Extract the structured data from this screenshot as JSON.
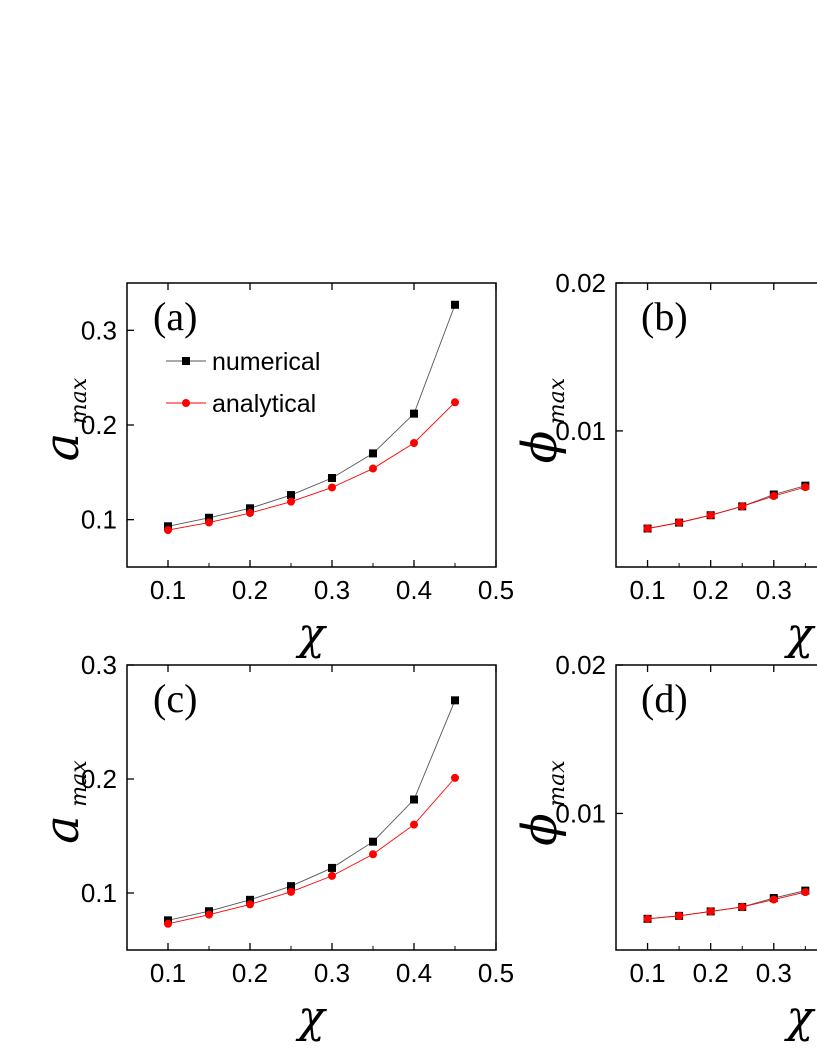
{
  "chart_data": [
    {
      "type": "line",
      "panel_label": "(a)",
      "xlabel": "χ",
      "ylabel": {
        "symbol": "a",
        "subscript": "max"
      },
      "xlim": [
        0.05,
        0.5
      ],
      "ylim": [
        0.05,
        0.35
      ],
      "x_ticks": [
        0.1,
        0.2,
        0.3,
        0.4,
        0.5
      ],
      "x_tick_labels": [
        "0.1",
        "0.2",
        "0.3",
        "0.4",
        "0.5"
      ],
      "y_ticks": [
        0.1,
        0.2,
        0.3
      ],
      "y_tick_labels": [
        "0.1",
        "0.2",
        "0.3"
      ],
      "x": [
        0.1,
        0.15,
        0.2,
        0.25,
        0.3,
        0.35,
        0.4,
        0.45
      ],
      "series": [
        {
          "name": "numerical",
          "marker": "square",
          "color": "#000000",
          "values": [
            0.093,
            0.102,
            0.112,
            0.126,
            0.144,
            0.17,
            0.212,
            0.327
          ]
        },
        {
          "name": "analytical",
          "marker": "circle",
          "color": "#ff0000",
          "values": [
            0.089,
            0.097,
            0.107,
            0.119,
            0.134,
            0.154,
            0.181,
            0.224
          ]
        }
      ],
      "legend": "upper-left"
    },
    {
      "type": "line",
      "panel_label": "(b)",
      "xlabel": "χ",
      "ylabel": {
        "symbol": "ϕ",
        "subscript": "max"
      },
      "xlim": [
        0.05,
        0.5
      ],
      "ylim": [
        0.0008,
        0.02
      ],
      "x_ticks": [
        0.1,
        0.2,
        0.3
      ],
      "x_tick_labels": [
        "0.1",
        "0.2",
        "0.3"
      ],
      "y_ticks": [
        0.01,
        0.02
      ],
      "y_tick_labels": [
        "0.01",
        "0.02"
      ],
      "x": [
        0.1,
        0.15,
        0.2,
        0.25,
        0.3,
        0.35
      ],
      "series": [
        {
          "name": "numerical",
          "marker": "square",
          "color": "#000000",
          "values": [
            0.0034,
            0.0038,
            0.0043,
            0.0049,
            0.0057,
            0.0063
          ]
        },
        {
          "name": "analytical",
          "marker": "circle",
          "color": "#ff0000",
          "values": [
            0.0034,
            0.0038,
            0.0043,
            0.0049,
            0.0056,
            0.0062
          ]
        }
      ]
    },
    {
      "type": "line",
      "panel_label": "(c)",
      "xlabel": "χ",
      "ylabel": {
        "symbol": "a",
        "subscript": "max"
      },
      "xlim": [
        0.05,
        0.5
      ],
      "ylim": [
        0.05,
        0.3
      ],
      "x_ticks": [
        0.1,
        0.2,
        0.3,
        0.4,
        0.5
      ],
      "x_tick_labels": [
        "0.1",
        "0.2",
        "0.3",
        "0.4",
        "0.5"
      ],
      "y_ticks": [
        0.1,
        0.2,
        0.3
      ],
      "y_tick_labels": [
        "0.1",
        "0.2",
        "0.3"
      ],
      "x": [
        0.1,
        0.15,
        0.2,
        0.25,
        0.3,
        0.35,
        0.4,
        0.45
      ],
      "series": [
        {
          "name": "numerical",
          "marker": "square",
          "color": "#000000",
          "values": [
            0.076,
            0.084,
            0.094,
            0.106,
            0.122,
            0.145,
            0.182,
            0.269
          ]
        },
        {
          "name": "analytical",
          "marker": "circle",
          "color": "#ff0000",
          "values": [
            0.073,
            0.081,
            0.09,
            0.101,
            0.115,
            0.134,
            0.16,
            0.201
          ]
        }
      ]
    },
    {
      "type": "line",
      "panel_label": "(d)",
      "xlabel": "χ",
      "ylabel": {
        "symbol": "ϕ",
        "subscript": "max"
      },
      "xlim": [
        0.05,
        0.5
      ],
      "ylim": [
        0.0008,
        0.02
      ],
      "x_ticks": [
        0.1,
        0.2,
        0.3
      ],
      "x_tick_labels": [
        "0.1",
        "0.2",
        "0.3"
      ],
      "y_ticks": [
        0.01,
        0.02
      ],
      "y_tick_labels": [
        "0.01",
        "0.02"
      ],
      "x": [
        0.1,
        0.15,
        0.2,
        0.25,
        0.3,
        0.35
      ],
      "series": [
        {
          "name": "numerical",
          "marker": "square",
          "color": "#000000",
          "values": [
            0.0029,
            0.0031,
            0.0034,
            0.0037,
            0.0043,
            0.0048
          ]
        },
        {
          "name": "analytical",
          "marker": "circle",
          "color": "#ff0000",
          "values": [
            0.0029,
            0.0031,
            0.0034,
            0.0037,
            0.0042,
            0.0047
          ]
        }
      ]
    }
  ]
}
